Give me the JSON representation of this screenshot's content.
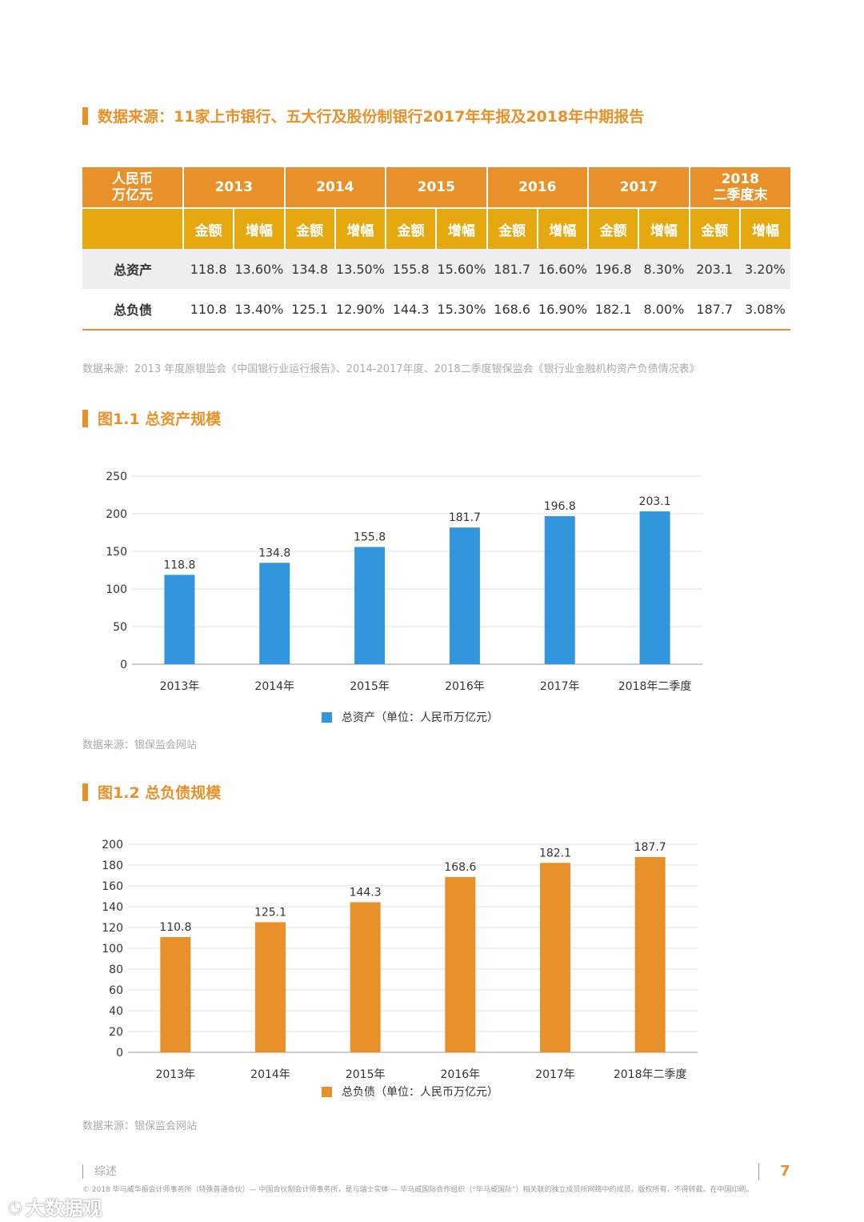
{
  "main_heading": "数据来源：11家上市银行、五大行及股份制银行2017年年报及2018年中期报告",
  "table": {
    "corner_line1": "人民币",
    "corner_line2": "万亿元",
    "years": [
      {
        "label": "2013"
      },
      {
        "label": "2014"
      },
      {
        "label": "2015"
      },
      {
        "label": "2016"
      },
      {
        "label": "2017"
      },
      {
        "label_line1": "2018",
        "label_line2": "二季度末"
      }
    ],
    "sub_amount": "金额",
    "sub_growth": "增幅",
    "rows": [
      {
        "label": "总资产",
        "cells": [
          "118.8",
          "13.60%",
          "134.8",
          "13.50%",
          "155.8",
          "15.60%",
          "181.7",
          "16.60%",
          "196.8",
          "8.30%",
          "203.1",
          "3.20%"
        ]
      },
      {
        "label": "总负债",
        "cells": [
          "110.8",
          "13.40%",
          "125.1",
          "12.90%",
          "144.3",
          "15.30%",
          "168.6",
          "16.90%",
          "182.1",
          "8.00%",
          "187.7",
          "3.08%"
        ]
      }
    ]
  },
  "table_source": "数据来源：2013 年度原银监会《中国银行业运行报告》、2014-2017年度、2018二季度银保监会《银行业金融机构资产负债情况表》",
  "fig1_heading": "图1.1 总资产规模",
  "fig2_heading": "图1.2 总负债规模",
  "fig1_source": "数据来源：银保监会网站",
  "fig2_source": "数据来源：银保监会网站",
  "footer": {
    "section": "综述",
    "page": "7",
    "copyright": "© 2018 毕马威华振会计师事务所（特殊普通合伙）— 中国合伙制会计师事务所，是与瑞士实体 — 毕马威国际合作组织（“毕马威国际”）相关联的独立成员所网络中的成员。版权所有，不得转载。在中国印刷。"
  },
  "watermark": "大数据观",
  "chart_data": [
    {
      "type": "bar",
      "title": "图1.1 总资产规模",
      "categories": [
        "2013年",
        "2014年",
        "2015年",
        "2016年",
        "2017年",
        "2018年二季度"
      ],
      "series": [
        {
          "name": "总资产（单位：人民币万亿元）",
          "values": [
            118.8,
            134.8,
            155.8,
            181.7,
            196.8,
            203.1
          ],
          "color": "#3196dc"
        }
      ],
      "value_labels": [
        "118.8",
        "134.8",
        "155.8",
        "181.7",
        "196.8",
        "203.1"
      ],
      "ylim": [
        0,
        250
      ],
      "yticks": [
        0,
        50,
        100,
        150,
        200,
        250
      ],
      "legend": "bottom-center",
      "grid": true
    },
    {
      "type": "bar",
      "title": "图1.2 总负债规模",
      "categories": [
        "2013年",
        "2014年",
        "2015年",
        "2016年",
        "2017年",
        "2018年二季度"
      ],
      "series": [
        {
          "name": "总负债（单位：人民币万亿元）",
          "values": [
            110.8,
            125.1,
            144.3,
            168.6,
            182.1,
            187.7
          ],
          "color": "#e8912a"
        }
      ],
      "value_labels": [
        "110.8",
        "125.1",
        "144.3",
        "168.6",
        "182.1",
        "187.7"
      ],
      "ylim": [
        0,
        200
      ],
      "yticks": [
        0,
        20,
        40,
        60,
        80,
        100,
        120,
        140,
        160,
        180,
        200
      ],
      "legend": "bottom-center",
      "grid": true
    }
  ]
}
